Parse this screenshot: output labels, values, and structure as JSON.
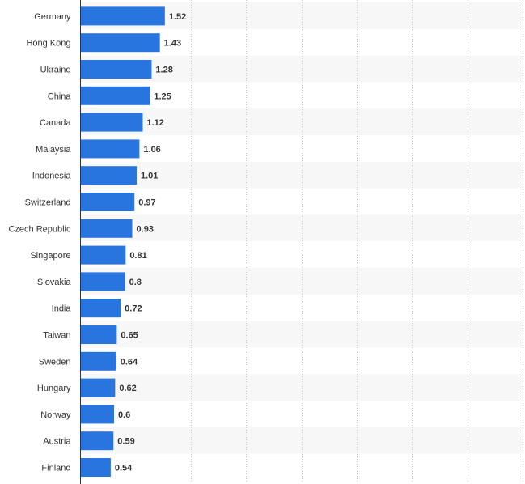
{
  "chart_data": {
    "type": "bar",
    "orientation": "horizontal",
    "categories": [
      "Germany",
      "Hong Kong",
      "Ukraine",
      "China",
      "Canada",
      "Malaysia",
      "Indonesia",
      "Switzerland",
      "Czech Republic",
      "Singapore",
      "Slovakia",
      "India",
      "Taiwan",
      "Sweden",
      "Hungary",
      "Norway",
      "Austria",
      "Finland"
    ],
    "values": [
      1.52,
      1.43,
      1.28,
      1.25,
      1.12,
      1.06,
      1.01,
      0.97,
      0.93,
      0.81,
      0.8,
      0.72,
      0.65,
      0.64,
      0.62,
      0.6,
      0.59,
      0.54
    ],
    "value_labels": [
      "1.52",
      "1.43",
      "1.28",
      "1.25",
      "1.12",
      "1.06",
      "1.01",
      "0.97",
      "0.93",
      "0.81",
      "0.8",
      "0.72",
      "0.65",
      "0.64",
      "0.62",
      "0.6",
      "0.59",
      "0.54"
    ],
    "xlim": [
      0,
      8
    ],
    "grid": true,
    "legend": "none",
    "colors": {
      "bar": "#2875e0",
      "grid": "#c8c8c8",
      "band": "#f7f7f7",
      "axis": "#333333",
      "text": "#333333"
    }
  }
}
